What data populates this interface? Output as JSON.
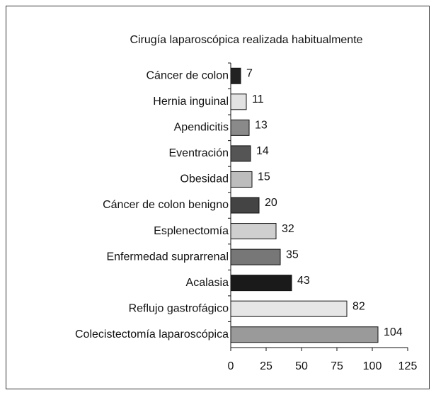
{
  "chart_data": {
    "type": "hbar",
    "title": "Cirugía laparoscópica realizada habitualmente",
    "categories": [
      "Cáncer de colon",
      "Hernia inguinal",
      "Apendicitis",
      "Eventración",
      "Obesidad",
      "Cáncer de  colon benigno",
      "Esplenectomía",
      "Enfermedad suprarrenal",
      "Acalasia",
      "Reflujo gastrofágico",
      "Colecistectomía laparoscópica"
    ],
    "values": [
      7,
      11,
      13,
      14,
      15,
      20,
      32,
      35,
      43,
      82,
      104
    ],
    "colors": [
      "#222222",
      "#e2e2e2",
      "#8a8a8a",
      "#555555",
      "#bdbdbd",
      "#444444",
      "#cfcfcf",
      "#777777",
      "#1a1a1a",
      "#e6e6e6",
      "#9a9a9a"
    ],
    "xlim": [
      0,
      125
    ],
    "xticks": [
      0,
      25,
      50,
      75,
      100,
      125
    ],
    "grid": false
  }
}
